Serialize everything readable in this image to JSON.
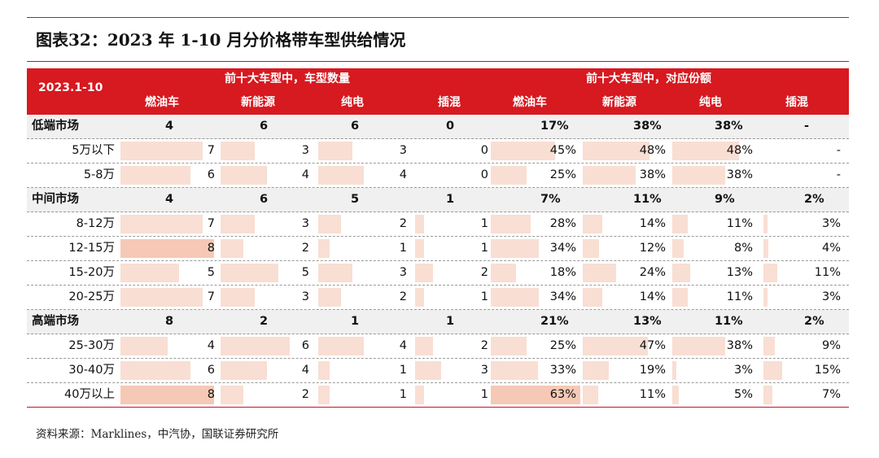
{
  "title": "图表32：2023 年 1-10 月分价格带车型供给情况",
  "header": {
    "period": "2023.1-10",
    "group_count": "前十大车型中，车型数量",
    "group_share": "前十大车型中，对应份额",
    "columns": [
      "燃油车",
      "新能源",
      "纯电",
      "插混",
      "燃油车",
      "新能源",
      "纯电",
      "插混"
    ]
  },
  "groups": [
    {
      "name": "低端市场",
      "values": [
        "4",
        "6",
        "6",
        "0",
        "17%",
        "38%",
        "38%",
        "-"
      ],
      "rows": [
        {
          "label": "5万以下",
          "values": [
            "7",
            "3",
            "3",
            "0",
            "45%",
            "48%",
            "48%",
            "-"
          ]
        },
        {
          "label": "5-8万",
          "values": [
            "6",
            "4",
            "4",
            "0",
            "25%",
            "38%",
            "38%",
            "-"
          ]
        }
      ]
    },
    {
      "name": "中间市场",
      "values": [
        "4",
        "6",
        "5",
        "1",
        "7%",
        "11%",
        "9%",
        "2%"
      ],
      "rows": [
        {
          "label": "8-12万",
          "values": [
            "7",
            "3",
            "2",
            "1",
            "28%",
            "14%",
            "11%",
            "3%"
          ]
        },
        {
          "label": "12-15万",
          "values": [
            "8",
            "2",
            "1",
            "1",
            "34%",
            "12%",
            "8%",
            "4%"
          ]
        },
        {
          "label": "15-20万",
          "values": [
            "5",
            "5",
            "3",
            "2",
            "18%",
            "24%",
            "13%",
            "11%"
          ]
        },
        {
          "label": "20-25万",
          "values": [
            "7",
            "3",
            "2",
            "1",
            "34%",
            "14%",
            "11%",
            "3%"
          ]
        }
      ]
    },
    {
      "name": "高端市场",
      "values": [
        "8",
        "2",
        "1",
        "1",
        "21%",
        "13%",
        "11%",
        "2%"
      ],
      "rows": [
        {
          "label": "25-30万",
          "values": [
            "4",
            "6",
            "4",
            "2",
            "25%",
            "47%",
            "38%",
            "9%"
          ]
        },
        {
          "label": "30-40万",
          "values": [
            "6",
            "4",
            "1",
            "3",
            "33%",
            "19%",
            "3%",
            "15%"
          ]
        },
        {
          "label": "40万以上",
          "values": [
            "8",
            "2",
            "1",
            "1",
            "63%",
            "11%",
            "5%",
            "7%"
          ]
        }
      ]
    }
  ],
  "source": "资料来源：Marklines，中汽协，国联证券研究所",
  "colors": {
    "accent": "#d71920",
    "rule": "#c8102e",
    "bar": "#f9ded3",
    "bar_highlight": "#f5c9b5",
    "group_bg": "#f0f0f0"
  }
}
